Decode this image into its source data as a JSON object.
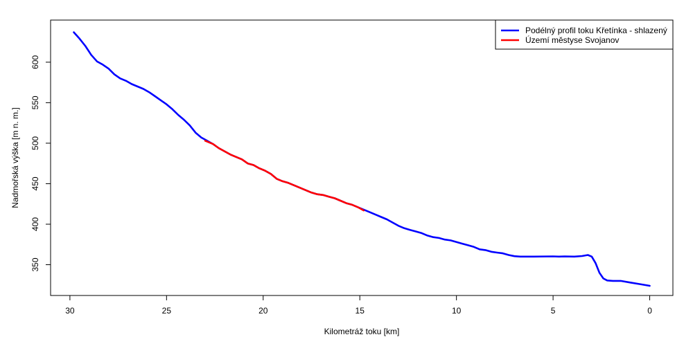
{
  "chart_data": {
    "type": "line",
    "xlabel": "Kilometráž toku [km]",
    "ylabel": "Nadmořská výška [m n. m.]",
    "xlim": [
      31,
      -1.2
    ],
    "ylim": [
      312,
      652
    ],
    "x_ticks": [
      30,
      25,
      20,
      15,
      10,
      5,
      0
    ],
    "y_ticks": [
      350,
      400,
      450,
      500,
      550,
      600
    ],
    "grid": false,
    "legend_position": "top-right",
    "series": [
      {
        "name": "Podélný profil toku Křetínka - shlazený",
        "color": "#0000ff",
        "points": [
          [
            29.8,
            637
          ],
          [
            29.5,
            629
          ],
          [
            29.2,
            620
          ],
          [
            28.9,
            609
          ],
          [
            28.6,
            601
          ],
          [
            28.3,
            597
          ],
          [
            28.0,
            592
          ],
          [
            27.7,
            585
          ],
          [
            27.4,
            580
          ],
          [
            27.1,
            577
          ],
          [
            26.8,
            573
          ],
          [
            26.5,
            570
          ],
          [
            26.2,
            567
          ],
          [
            25.9,
            563
          ],
          [
            25.6,
            558
          ],
          [
            25.3,
            553
          ],
          [
            25.0,
            548
          ],
          [
            24.7,
            542
          ],
          [
            24.4,
            535
          ],
          [
            24.1,
            529
          ],
          [
            23.8,
            522
          ],
          [
            23.5,
            513
          ],
          [
            23.2,
            507
          ],
          [
            22.9,
            503
          ],
          [
            22.6,
            499
          ],
          [
            22.3,
            494
          ],
          [
            22.0,
            490
          ],
          [
            21.7,
            486
          ],
          [
            21.4,
            483
          ],
          [
            21.1,
            480
          ],
          [
            20.8,
            475
          ],
          [
            20.5,
            473
          ],
          [
            20.2,
            469
          ],
          [
            19.9,
            466
          ],
          [
            19.6,
            462
          ],
          [
            19.3,
            456
          ],
          [
            19.0,
            453
          ],
          [
            18.7,
            451
          ],
          [
            18.4,
            448
          ],
          [
            18.1,
            445
          ],
          [
            17.8,
            442
          ],
          [
            17.5,
            439
          ],
          [
            17.2,
            437
          ],
          [
            16.9,
            436
          ],
          [
            16.6,
            434
          ],
          [
            16.3,
            432
          ],
          [
            16.0,
            429
          ],
          [
            15.7,
            426
          ],
          [
            15.4,
            424
          ],
          [
            15.1,
            421
          ],
          [
            14.8,
            418
          ],
          [
            14.5,
            415
          ],
          [
            14.2,
            412
          ],
          [
            13.9,
            409
          ],
          [
            13.6,
            406
          ],
          [
            13.3,
            402
          ],
          [
            13.0,
            398
          ],
          [
            12.7,
            395
          ],
          [
            12.4,
            393
          ],
          [
            12.1,
            391
          ],
          [
            11.8,
            389
          ],
          [
            11.5,
            386
          ],
          [
            11.2,
            384
          ],
          [
            10.9,
            383
          ],
          [
            10.6,
            381
          ],
          [
            10.3,
            380
          ],
          [
            10.0,
            378
          ],
          [
            9.7,
            376
          ],
          [
            9.4,
            374
          ],
          [
            9.1,
            372
          ],
          [
            8.8,
            369
          ],
          [
            8.5,
            368
          ],
          [
            8.2,
            366
          ],
          [
            7.9,
            365
          ],
          [
            7.6,
            364
          ],
          [
            7.3,
            362
          ],
          [
            7.0,
            360.5
          ],
          [
            6.7,
            360
          ],
          [
            6.0,
            360
          ],
          [
            5.0,
            360.3
          ],
          [
            4.7,
            360
          ],
          [
            4.4,
            360.2
          ],
          [
            3.9,
            360
          ],
          [
            3.5,
            360.7
          ],
          [
            3.2,
            362
          ],
          [
            3.0,
            360
          ],
          [
            2.8,
            352
          ],
          [
            2.6,
            340
          ],
          [
            2.4,
            333
          ],
          [
            2.2,
            330.5
          ],
          [
            1.9,
            330
          ],
          [
            1.5,
            330
          ],
          [
            1.0,
            328
          ],
          [
            0.5,
            326
          ],
          [
            0.0,
            324
          ]
        ]
      },
      {
        "name": "Území městyse Svojanov",
        "color": "#ff0000",
        "points": [
          [
            23.0,
            503
          ],
          [
            22.6,
            499
          ],
          [
            22.3,
            494
          ],
          [
            22.0,
            490
          ],
          [
            21.7,
            486
          ],
          [
            21.4,
            483
          ],
          [
            21.1,
            480
          ],
          [
            20.8,
            475
          ],
          [
            20.5,
            473
          ],
          [
            20.2,
            469
          ],
          [
            19.9,
            466
          ],
          [
            19.6,
            462
          ],
          [
            19.3,
            456
          ],
          [
            19.0,
            453
          ],
          [
            18.7,
            451
          ],
          [
            18.4,
            448
          ],
          [
            18.1,
            445
          ],
          [
            17.8,
            442
          ],
          [
            17.5,
            439
          ],
          [
            17.2,
            437
          ],
          [
            16.9,
            436
          ],
          [
            16.6,
            434
          ],
          [
            16.3,
            432
          ],
          [
            16.0,
            429
          ],
          [
            15.7,
            426
          ],
          [
            15.4,
            424
          ],
          [
            15.1,
            421
          ],
          [
            14.8,
            417
          ]
        ]
      }
    ]
  }
}
